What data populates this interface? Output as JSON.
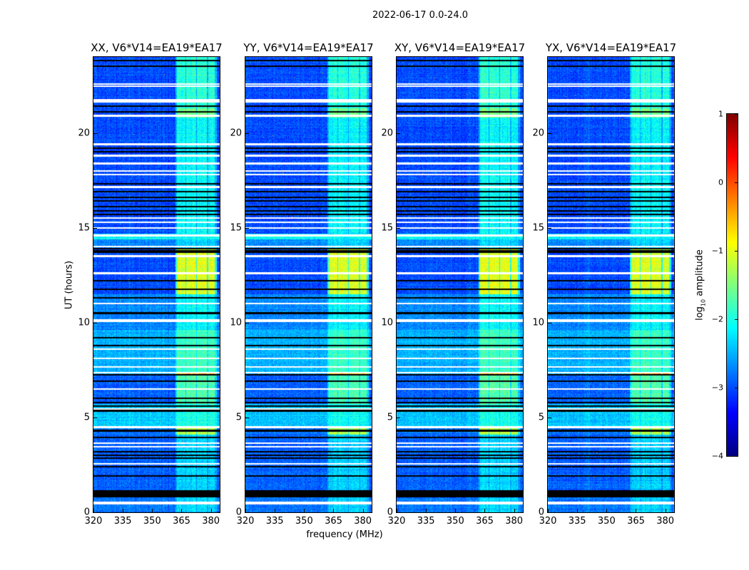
{
  "suptitle": "2022-06-17 0.0-24.0",
  "chart_data": {
    "type": "heatmap",
    "xlabel": "frequency (MHz)",
    "ylabel": "UT (hours)",
    "xlim": [
      320,
      384.5
    ],
    "ylim": [
      0,
      24
    ],
    "xticks": [
      "320",
      "335",
      "350",
      "365",
      "380"
    ],
    "yticks": [
      "0",
      "5",
      "10",
      "15",
      "20"
    ],
    "colormap": "jet",
    "colorbar": {
      "label_main": "log",
      "label_sub": "10",
      "label_rest": " amplitude",
      "range": [
        -4,
        1
      ],
      "ticks": [
        "−4",
        "−3",
        "−2",
        "−1",
        "0",
        "1"
      ]
    },
    "panels": [
      {
        "title": "XX, V6*V14=EA19*EA17",
        "band_offset": 0.0
      },
      {
        "title": "YY, V6*V14=EA19*EA17",
        "band_offset": -0.05
      },
      {
        "title": "XY, V6*V14=EA19*EA17",
        "band_offset": 0.0
      },
      {
        "title": "YX, V6*V14=EA19*EA17",
        "band_offset": -0.05
      }
    ],
    "subbands_mhz": [
      [
        362.5,
        367
      ],
      [
        367.5,
        372.5
      ],
      [
        373,
        378
      ],
      [
        378.5,
        382
      ]
    ],
    "segments_ut": [
      {
        "ut": [
          0,
          0.8
        ],
        "band": -2.3,
        "bg": -2.8
      },
      {
        "ut": [
          0.8,
          1.15
        ],
        "band": null,
        "bg": null
      },
      {
        "ut": [
          1.15,
          4.1
        ],
        "band": -2.3,
        "bg": -2.9
      },
      {
        "ut": [
          4.1,
          4.45
        ],
        "band": -1.2,
        "bg": -2.8
      },
      {
        "ut": [
          4.45,
          5.7
        ],
        "band": -2.0,
        "bg": -2.4
      },
      {
        "ut": [
          5.7,
          7.2
        ],
        "band": -1.7,
        "bg": -2.9
      },
      {
        "ut": [
          7.2,
          7.38
        ],
        "band": -0.4,
        "bg": -2.5
      },
      {
        "ut": [
          7.38,
          9.6
        ],
        "band": -1.8,
        "bg": -2.5
      },
      {
        "ut": [
          9.6,
          11.5
        ],
        "band": -2.1,
        "bg": -2.7
      },
      {
        "ut": [
          11.5,
          13.9
        ],
        "band": -1.0,
        "bg": -3.0
      },
      {
        "ut": [
          13.9,
          14.4
        ],
        "band": -2.3,
        "bg": -2.7
      },
      {
        "ut": [
          14.4,
          14.7
        ],
        "band": -2.1,
        "bg": -2.1
      },
      {
        "ut": [
          14.7,
          20.8
        ],
        "band": -2.1,
        "bg": -3.0
      },
      {
        "ut": [
          20.8,
          21.3
        ],
        "band": -1.5,
        "bg": -3.0
      },
      {
        "ut": [
          21.3,
          24
        ],
        "band": -1.9,
        "bg": -3.0
      }
    ],
    "flagged_white_ut": [
      [
        0.5,
        0.12
      ],
      [
        2.55,
        0.04
      ],
      [
        3.45,
        0.04
      ],
      [
        3.65,
        0.04
      ],
      [
        4.5,
        0.06
      ],
      [
        5.45,
        0.04
      ],
      [
        6.5,
        0.04
      ],
      [
        7.35,
        0.04
      ],
      [
        7.65,
        0.04
      ],
      [
        8.1,
        0.04
      ],
      [
        8.6,
        0.06
      ],
      [
        10.1,
        0.1
      ],
      [
        11.0,
        0.04
      ],
      [
        12.6,
        0.04
      ],
      [
        13.5,
        0.04
      ],
      [
        14.0,
        0.04
      ],
      [
        14.6,
        0.06
      ],
      [
        15.0,
        0.04
      ],
      [
        15.3,
        0.04
      ],
      [
        15.5,
        0.04
      ],
      [
        17.15,
        0.08
      ],
      [
        17.8,
        0.04
      ],
      [
        18.0,
        0.04
      ],
      [
        18.4,
        0.08
      ],
      [
        18.8,
        0.04
      ],
      [
        19.4,
        0.04
      ],
      [
        20.9,
        0.04
      ],
      [
        21.7,
        0.16
      ],
      [
        22.45,
        0.04
      ],
      [
        22.57,
        0.04
      ]
    ],
    "flagged_black_ut": [
      [
        0.98,
        0.18
      ],
      [
        1.9,
        0.04
      ],
      [
        2.4,
        0.04
      ],
      [
        2.85,
        0.04
      ],
      [
        3.0,
        0.04
      ],
      [
        3.2,
        0.04
      ],
      [
        3.95,
        0.04
      ],
      [
        4.3,
        0.04
      ],
      [
        5.35,
        0.04
      ],
      [
        5.6,
        0.04
      ],
      [
        5.8,
        0.04
      ],
      [
        6.0,
        0.04
      ],
      [
        6.9,
        0.04
      ],
      [
        7.25,
        0.04
      ],
      [
        8.8,
        0.04
      ],
      [
        9.2,
        0.04
      ],
      [
        10.5,
        0.04
      ],
      [
        11.3,
        0.04
      ],
      [
        11.75,
        0.04
      ],
      [
        12.2,
        0.04
      ],
      [
        13.7,
        0.04
      ],
      [
        13.8,
        0.04
      ],
      [
        13.9,
        0.04
      ],
      [
        15.7,
        0.04
      ],
      [
        15.9,
        0.04
      ],
      [
        16.1,
        0.04
      ],
      [
        16.4,
        0.04
      ],
      [
        16.6,
        0.04
      ],
      [
        16.9,
        0.04
      ],
      [
        17.3,
        0.04
      ],
      [
        19.0,
        0.04
      ],
      [
        19.2,
        0.04
      ],
      [
        21.1,
        0.04
      ],
      [
        21.4,
        0.04
      ],
      [
        23.5,
        0.04
      ],
      [
        23.8,
        0.04
      ]
    ]
  }
}
